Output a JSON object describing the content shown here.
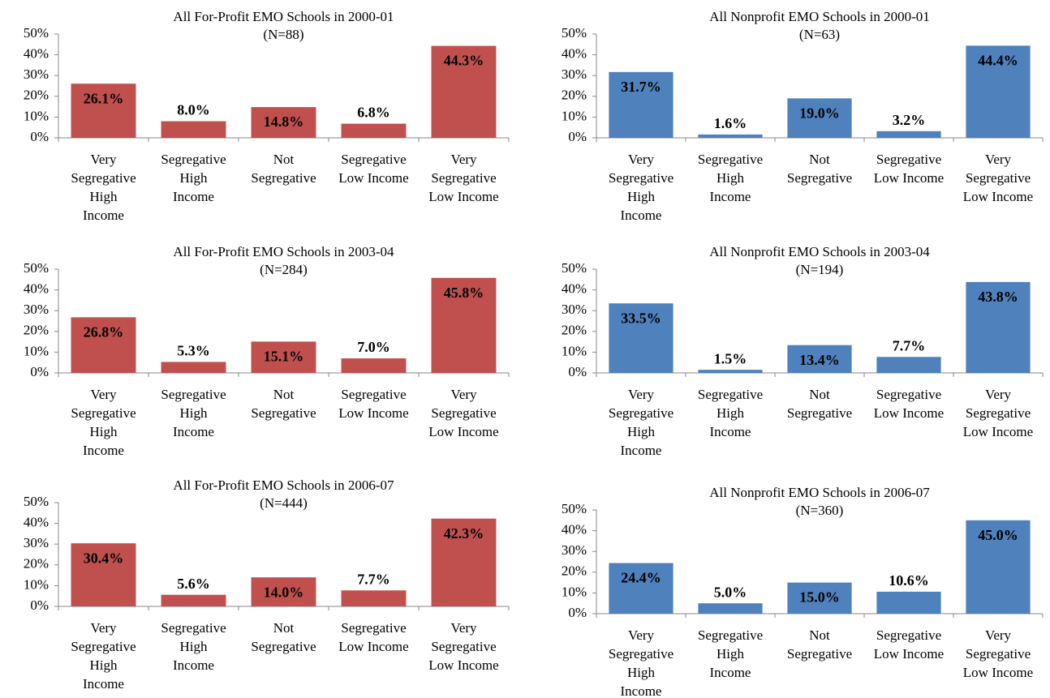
{
  "chart_data": [
    {
      "type": "bar",
      "title": "All For-Profit EMO Schools in 2000-01",
      "subtitle": "(N=88)",
      "categories": [
        "Very\nSegregative\nHigh\nIncome",
        "Segregative\nHigh\nIncome",
        "Not\nSegregative",
        "Segregative\nLow Income",
        "Very\nSegregative\nLow Income"
      ],
      "values": [
        26.1,
        8.0,
        14.8,
        6.8,
        44.3
      ],
      "value_labels": [
        "26.1%",
        "8.0%",
        "14.8%",
        "6.8%",
        "44.3%"
      ],
      "color": "#c0504d",
      "ylim": [
        0,
        50
      ],
      "yticks": [
        {
          "value": 0,
          "label": "0%"
        },
        {
          "value": 10,
          "label": "10%"
        },
        {
          "value": 20,
          "label": "20%"
        },
        {
          "value": 30,
          "label": "30%"
        },
        {
          "value": 40,
          "label": "40%"
        },
        {
          "value": 50,
          "label": "50%"
        }
      ],
      "grid": false
    },
    {
      "type": "bar",
      "title": "All Nonprofit EMO Schools in 2000-01",
      "subtitle": "(N=63)",
      "categories": [
        "Very\nSegregative\nHigh\nIncome",
        "Segregative\nHigh\nIncome",
        "Not\nSegregative",
        "Segregative\nLow Income",
        "Very\nSegregative\nLow Income"
      ],
      "values": [
        31.7,
        1.6,
        19.0,
        3.2,
        44.4
      ],
      "value_labels": [
        "31.7%",
        "1.6%",
        "19.0%",
        "3.2%",
        "44.4%"
      ],
      "color": "#4f81bd",
      "ylim": [
        0,
        50
      ],
      "yticks": [
        {
          "value": 0,
          "label": "0%"
        },
        {
          "value": 10,
          "label": "10%"
        },
        {
          "value": 20,
          "label": "20%"
        },
        {
          "value": 30,
          "label": "30%"
        },
        {
          "value": 40,
          "label": "40%"
        },
        {
          "value": 50,
          "label": "50%"
        }
      ],
      "grid": false
    },
    {
      "type": "bar",
      "title": "All For-Profit EMO Schools in 2003-04",
      "subtitle": "(N=284)",
      "categories": [
        "Very\nSegregative\nHigh\nIncome",
        "Segregative\nHigh\nIncome",
        "Not\nSegregative",
        "Segregative\nLow Income",
        "Very\nSegregative\nLow Income"
      ],
      "values": [
        26.8,
        5.3,
        15.1,
        7.0,
        45.8
      ],
      "value_labels": [
        "26.8%",
        "5.3%",
        "15.1%",
        "7.0%",
        "45.8%"
      ],
      "color": "#c0504d",
      "ylim": [
        0,
        50
      ],
      "yticks": [
        {
          "value": 0,
          "label": "0%"
        },
        {
          "value": 10,
          "label": "10%"
        },
        {
          "value": 20,
          "label": "20%"
        },
        {
          "value": 30,
          "label": "30%"
        },
        {
          "value": 40,
          "label": "40%"
        },
        {
          "value": 50,
          "label": "50%"
        }
      ],
      "grid": false
    },
    {
      "type": "bar",
      "title": "All Nonprofit EMO Schools in 2003-04",
      "subtitle": "(N=194)",
      "categories": [
        "Very\nSegregative\nHigh\nIncome",
        "Segregative\nHigh\nIncome",
        "Not\nSegregative",
        "Segregative\nLow Income",
        "Very\nSegregative\nLow Income"
      ],
      "values": [
        33.5,
        1.5,
        13.4,
        7.7,
        43.8
      ],
      "value_labels": [
        "33.5%",
        "1.5%",
        "13.4%",
        "7.7%",
        "43.8%"
      ],
      "color": "#4f81bd",
      "ylim": [
        0,
        50
      ],
      "yticks": [
        {
          "value": 0,
          "label": "0%"
        },
        {
          "value": 10,
          "label": "10%"
        },
        {
          "value": 20,
          "label": "20%"
        },
        {
          "value": 30,
          "label": "30%"
        },
        {
          "value": 40,
          "label": "40%"
        },
        {
          "value": 50,
          "label": "50%"
        }
      ],
      "grid": false
    },
    {
      "type": "bar",
      "title": "All For-Profit EMO Schools in 2006-07",
      "subtitle": "(N=444)",
      "categories": [
        "Very\nSegregative\nHigh\nIncome",
        "Segregative\nHigh\nIncome",
        "Not\nSegregative",
        "Segregative\nLow Income",
        "Very\nSegregative\nLow Income"
      ],
      "values": [
        30.4,
        5.6,
        14.0,
        7.7,
        42.3
      ],
      "value_labels": [
        "30.4%",
        "5.6%",
        "14.0%",
        "7.7%",
        "42.3%"
      ],
      "color": "#c0504d",
      "ylim": [
        0,
        50
      ],
      "yticks": [
        {
          "value": 0,
          "label": "0%"
        },
        {
          "value": 10,
          "label": "10%"
        },
        {
          "value": 20,
          "label": "20%"
        },
        {
          "value": 30,
          "label": "30%"
        },
        {
          "value": 40,
          "label": "40%"
        },
        {
          "value": 50,
          "label": "50%"
        }
      ],
      "grid": false
    },
    {
      "type": "bar",
      "title": "All Nonprofit EMO Schools in 2006-07",
      "subtitle": "(N=360)",
      "categories": [
        "Very\nSegregative\nHigh\nIncome",
        "Segregative\nHigh\nIncome",
        "Not\nSegregative",
        "Segregative\nLow Income",
        "Very\nSegregative\nLow Income"
      ],
      "values": [
        24.4,
        5.0,
        15.0,
        10.6,
        45.0
      ],
      "value_labels": [
        "24.4%",
        "5.0%",
        "15.0%",
        "10.6%",
        "45.0%"
      ],
      "color": "#4f81bd",
      "ylim": [
        0,
        50
      ],
      "yticks": [
        {
          "value": 0,
          "label": "0%"
        },
        {
          "value": 10,
          "label": "10%"
        },
        {
          "value": 20,
          "label": "20%"
        },
        {
          "value": 30,
          "label": "30%"
        },
        {
          "value": 40,
          "label": "40%"
        },
        {
          "value": 50,
          "label": "50%"
        }
      ],
      "grid": false
    }
  ]
}
